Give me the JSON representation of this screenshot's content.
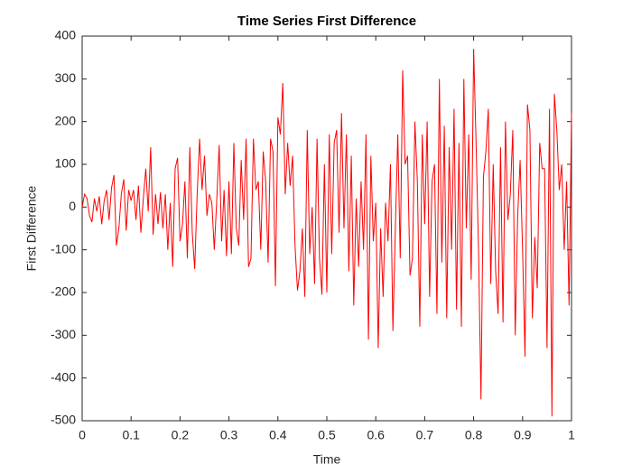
{
  "chart_data": {
    "type": "line",
    "title": "Time Series First Difference",
    "xlabel": "Time",
    "ylabel": "First Difference",
    "x": [
      0,
      0.005,
      0.01,
      0.015,
      0.02,
      0.025,
      0.03,
      0.035,
      0.04,
      0.045,
      0.05,
      0.055,
      0.06,
      0.065,
      0.07,
      0.075,
      0.08,
      0.085,
      0.09,
      0.095,
      0.1,
      0.105,
      0.11,
      0.115,
      0.12,
      0.125,
      0.13,
      0.135,
      0.14,
      0.145,
      0.15,
      0.155,
      0.16,
      0.165,
      0.17,
      0.175,
      0.18,
      0.185,
      0.19,
      0.195,
      0.2,
      0.205,
      0.21,
      0.215,
      0.22,
      0.225,
      0.23,
      0.235,
      0.24,
      0.245,
      0.25,
      0.255,
      0.26,
      0.265,
      0.27,
      0.275,
      0.28,
      0.285,
      0.29,
      0.295,
      0.3,
      0.305,
      0.31,
      0.315,
      0.32,
      0.325,
      0.33,
      0.335,
      0.34,
      0.345,
      0.35,
      0.355,
      0.36,
      0.365,
      0.37,
      0.375,
      0.38,
      0.385,
      0.39,
      0.395,
      0.4,
      0.405,
      0.41,
      0.415,
      0.42,
      0.425,
      0.43,
      0.435,
      0.44,
      0.445,
      0.45,
      0.455,
      0.46,
      0.465,
      0.47,
      0.475,
      0.48,
      0.485,
      0.49,
      0.495,
      0.5,
      0.505,
      0.51,
      0.515,
      0.52,
      0.525,
      0.53,
      0.535,
      0.54,
      0.545,
      0.55,
      0.555,
      0.56,
      0.565,
      0.57,
      0.575,
      0.58,
      0.585,
      0.59,
      0.595,
      0.6,
      0.605,
      0.61,
      0.615,
      0.62,
      0.625,
      0.63,
      0.635,
      0.64,
      0.645,
      0.65,
      0.655,
      0.66,
      0.665,
      0.67,
      0.675,
      0.68,
      0.685,
      0.69,
      0.695,
      0.7,
      0.705,
      0.71,
      0.715,
      0.72,
      0.725,
      0.73,
      0.735,
      0.74,
      0.745,
      0.75,
      0.755,
      0.76,
      0.765,
      0.77,
      0.775,
      0.78,
      0.785,
      0.79,
      0.795,
      0.8,
      0.805,
      0.81,
      0.815,
      0.82,
      0.825,
      0.83,
      0.835,
      0.84,
      0.845,
      0.85,
      0.855,
      0.86,
      0.865,
      0.87,
      0.875,
      0.88,
      0.885,
      0.89,
      0.895,
      0.9,
      0.905,
      0.91,
      0.915,
      0.92,
      0.925,
      0.93,
      0.935,
      0.94,
      0.945,
      0.95,
      0.955,
      0.96,
      0.965,
      0.97,
      0.975,
      0.98,
      0.985,
      0.99,
      0.995,
      1
    ],
    "series": [
      {
        "color": "#ff0000",
        "values": [
          0,
          30,
          20,
          -20,
          -35,
          20,
          -10,
          25,
          -40,
          15,
          40,
          -30,
          45,
          75,
          -90,
          -50,
          30,
          65,
          -55,
          40,
          15,
          40,
          -30,
          50,
          -60,
          20,
          90,
          -10,
          140,
          -65,
          30,
          -40,
          35,
          -50,
          30,
          -100,
          10,
          -140,
          90,
          115,
          -80,
          -40,
          60,
          -120,
          140,
          -60,
          -145,
          30,
          160,
          40,
          120,
          -20,
          30,
          10,
          -100,
          15,
          145,
          -80,
          40,
          -115,
          60,
          -110,
          150,
          -50,
          -90,
          110,
          -30,
          160,
          -140,
          -120,
          160,
          40,
          60,
          -100,
          130,
          60,
          -130,
          160,
          130,
          -185,
          210,
          170,
          290,
          30,
          150,
          50,
          120,
          -90,
          -195,
          -150,
          -50,
          -210,
          180,
          -110,
          0,
          -180,
          160,
          -120,
          -205,
          100,
          -200,
          170,
          -110,
          150,
          180,
          -60,
          220,
          -50,
          170,
          -150,
          120,
          -230,
          20,
          -140,
          60,
          -100,
          170,
          -310,
          120,
          -80,
          10,
          -330,
          -50,
          -210,
          10,
          -80,
          100,
          -290,
          -50,
          170,
          -120,
          320,
          100,
          120,
          -160,
          -120,
          200,
          60,
          -280,
          170,
          -40,
          200,
          -210,
          60,
          100,
          -250,
          300,
          -130,
          190,
          -260,
          140,
          -100,
          230,
          -240,
          150,
          -280,
          300,
          -50,
          170,
          -170,
          370,
          150,
          -100,
          -450,
          70,
          130,
          230,
          -180,
          100,
          -150,
          -250,
          140,
          -270,
          200,
          -30,
          30,
          180,
          -300,
          -20,
          110,
          -100,
          -350,
          240,
          180,
          -260,
          -70,
          -190,
          150,
          90,
          90,
          -330,
          230,
          -490,
          265,
          180,
          40,
          100,
          -100,
          60,
          -230,
          220
        ]
      }
    ],
    "xlim": [
      0,
      1
    ],
    "xticks": [
      0,
      0.1,
      0.2,
      0.3,
      0.4,
      0.5,
      0.6,
      0.7,
      0.8,
      0.9,
      1
    ],
    "ylim": [
      -500,
      400
    ],
    "yticks": [
      -500,
      -400,
      -300,
      -200,
      -100,
      0,
      100,
      200,
      300,
      400
    ],
    "grid": false
  }
}
